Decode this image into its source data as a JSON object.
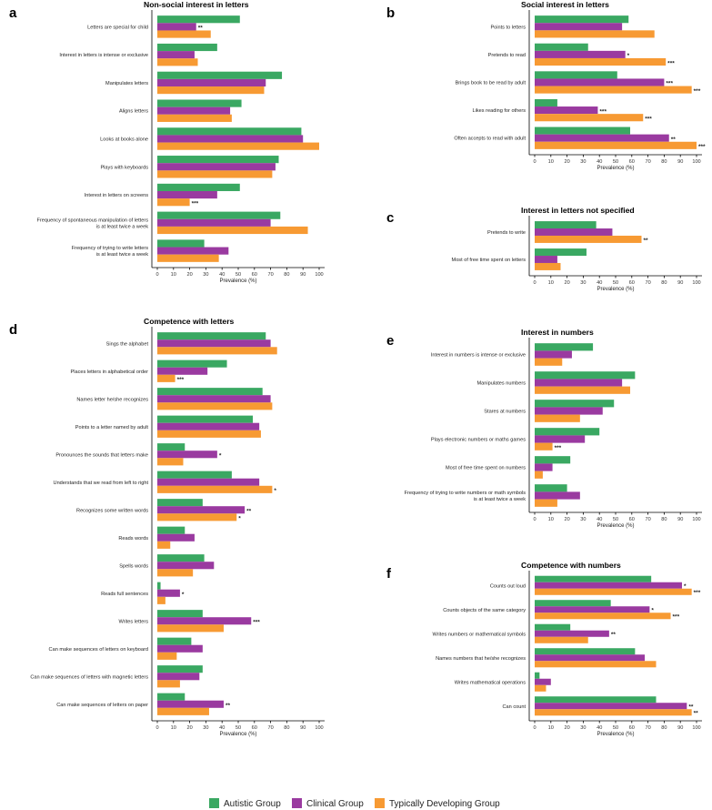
{
  "colors": {
    "autistic": "#3aa862",
    "clinical": "#9a3aa0",
    "typical": "#f79a33"
  },
  "legend": {
    "autistic": "Autistic Group",
    "clinical": "Clinical Group",
    "typical": "Typically Developing Group"
  },
  "chart_data": [
    {
      "id": "a",
      "letter": "a",
      "type": "bar",
      "orientation": "horizontal",
      "title": "Non-social interest in letters",
      "xlabel": "Prevalence (%)",
      "xlim": [
        0,
        100
      ],
      "xticks": [
        "0",
        "10",
        "20",
        "30",
        "40",
        "50",
        "60",
        "70",
        "80",
        "90",
        "100"
      ],
      "categories": [
        [
          "Letters are special for child"
        ],
        [
          "Interest in letters is intense or exclusive"
        ],
        [
          "Manipulates letters"
        ],
        [
          "Aligns letters"
        ],
        [
          "Looks at books alone"
        ],
        [
          "Plays with keyboards"
        ],
        [
          "Interest in letters on screens"
        ],
        [
          "Frequency of spontaneous manipulation of letters",
          "is at least twice a week"
        ],
        [
          "Frequency of trying to write letters",
          "is at least twice a week"
        ]
      ],
      "series": [
        {
          "name": "Autistic Group",
          "values": [
            51,
            37,
            77,
            52,
            89,
            75,
            51,
            76,
            29
          ]
        },
        {
          "name": "Clinical Group",
          "values": [
            24,
            23,
            67,
            45,
            90,
            73,
            37,
            70,
            44
          ]
        },
        {
          "name": "Typically Developing Group",
          "values": [
            33,
            25,
            66,
            46,
            100,
            71,
            20,
            93,
            38
          ]
        }
      ],
      "significance": [
        [
          "",
          "**",
          ""
        ],
        [
          "",
          "",
          ""
        ],
        [
          "",
          "",
          ""
        ],
        [
          "",
          "",
          ""
        ],
        [
          "",
          "",
          ""
        ],
        [
          "",
          "",
          ""
        ],
        [
          "",
          "",
          "***"
        ],
        [
          "",
          "",
          ""
        ],
        [
          "",
          "",
          ""
        ]
      ]
    },
    {
      "id": "b",
      "letter": "b",
      "type": "bar",
      "orientation": "horizontal",
      "title": "Social interest in letters",
      "xlabel": "Prevalence (%)",
      "xlim": [
        0,
        100
      ],
      "xticks": [
        "0",
        "10",
        "20",
        "30",
        "40",
        "50",
        "60",
        "70",
        "80",
        "90",
        "100"
      ],
      "categories": [
        [
          "Points to letters"
        ],
        [
          "Pretends to read"
        ],
        [
          "Brings book to be read by adult"
        ],
        [
          "Likes reading for others"
        ],
        [
          "Often accepts to read with adult"
        ]
      ],
      "series": [
        {
          "name": "Autistic Group",
          "values": [
            58,
            33,
            51,
            14,
            59
          ]
        },
        {
          "name": "Clinical Group",
          "values": [
            54,
            56,
            80,
            39,
            83
          ]
        },
        {
          "name": "Typically Developing Group",
          "values": [
            74,
            81,
            97,
            67,
            100
          ]
        }
      ],
      "significance": [
        [
          "",
          "",
          ""
        ],
        [
          "",
          "*",
          "***"
        ],
        [
          "",
          "***",
          "***"
        ],
        [
          "",
          "***",
          "***"
        ],
        [
          "",
          "**",
          "***"
        ]
      ]
    },
    {
      "id": "c",
      "letter": "c",
      "type": "bar",
      "orientation": "horizontal",
      "title": "Interest in letters not specified",
      "xlabel": "Prevalence (%)",
      "xlim": [
        0,
        100
      ],
      "xticks": [
        "0",
        "10",
        "20",
        "30",
        "40",
        "50",
        "60",
        "70",
        "80",
        "90",
        "100"
      ],
      "categories": [
        [
          "Pretends to write"
        ],
        [
          "Most of free time spent on letters"
        ]
      ],
      "series": [
        {
          "name": "Autistic Group",
          "values": [
            38,
            32
          ]
        },
        {
          "name": "Clinical Group",
          "values": [
            48,
            14
          ]
        },
        {
          "name": "Typically Developing Group",
          "values": [
            66,
            16
          ]
        }
      ],
      "significance": [
        [
          "",
          "",
          "**"
        ],
        [
          "",
          "",
          ""
        ]
      ]
    },
    {
      "id": "d",
      "letter": "d",
      "type": "bar",
      "orientation": "horizontal",
      "title": "Competence with letters",
      "xlabel": "Prevalence (%)",
      "xlim": [
        0,
        100
      ],
      "xticks": [
        "0",
        "10",
        "20",
        "30",
        "40",
        "50",
        "60",
        "70",
        "80",
        "90",
        "100"
      ],
      "categories": [
        [
          "Sings the alphabet"
        ],
        [
          "Places letters in alphabetical order"
        ],
        [
          "Names letter he/she recognizes"
        ],
        [
          "Points to a letter named by adult"
        ],
        [
          "Pronounces the sounds that letters make"
        ],
        [
          "Understands that we read from left to right"
        ],
        [
          "Recognizes some written words"
        ],
        [
          "Reads words"
        ],
        [
          "Spells words"
        ],
        [
          "Reads full sentences"
        ],
        [
          "Writes letters"
        ],
        [
          "Can make sequences of letters on keyboard"
        ],
        [
          "Can make sequences of letters with magnetic letters"
        ],
        [
          "Can make sequences of letters on paper"
        ]
      ],
      "series": [
        {
          "name": "Autistic Group",
          "values": [
            67,
            43,
            65,
            59,
            17,
            46,
            28,
            17,
            29,
            2,
            28,
            21,
            28,
            17
          ]
        },
        {
          "name": "Clinical Group",
          "values": [
            70,
            31,
            70,
            63,
            37,
            63,
            54,
            23,
            35,
            14,
            58,
            28,
            26,
            41
          ]
        },
        {
          "name": "Typically Developing Group",
          "values": [
            74,
            11,
            71,
            64,
            16,
            71,
            49,
            8,
            22,
            5,
            41,
            12,
            14,
            32
          ]
        }
      ],
      "significance": [
        [
          "",
          "",
          ""
        ],
        [
          "",
          "",
          "***"
        ],
        [
          "",
          "",
          ""
        ],
        [
          "",
          "",
          ""
        ],
        [
          "",
          "*",
          ""
        ],
        [
          "",
          "",
          "*"
        ],
        [
          "",
          "**",
          "*"
        ],
        [
          "",
          "",
          ""
        ],
        [
          "",
          "",
          ""
        ],
        [
          "",
          "*",
          ""
        ],
        [
          "",
          "***",
          ""
        ],
        [
          "",
          "",
          ""
        ],
        [
          "",
          "",
          ""
        ],
        [
          "",
          "**",
          ""
        ]
      ]
    },
    {
      "id": "e",
      "letter": "e",
      "type": "bar",
      "orientation": "horizontal",
      "title": "Interest in numbers",
      "xlabel": "Prevalence (%)",
      "xlim": [
        0,
        100
      ],
      "xticks": [
        "0",
        "10",
        "20",
        "30",
        "40",
        "50",
        "60",
        "70",
        "80",
        "90",
        "100"
      ],
      "categories": [
        [
          "Interest in numbers is intense or exclusive"
        ],
        [
          "Manipulates numbers"
        ],
        [
          "Stares at numbers"
        ],
        [
          "Plays electronic numbers or maths games"
        ],
        [
          "Most of free time spent on numbers"
        ],
        [
          "Frequency of trying to write numbers or math symbols",
          "is at least twice a week"
        ]
      ],
      "series": [
        {
          "name": "Autistic Group",
          "values": [
            36,
            62,
            49,
            40,
            22,
            20
          ]
        },
        {
          "name": "Clinical Group",
          "values": [
            23,
            54,
            42,
            31,
            11,
            28
          ]
        },
        {
          "name": "Typically Developing Group",
          "values": [
            17,
            59,
            28,
            11,
            5,
            14
          ]
        }
      ],
      "significance": [
        [
          "",
          "",
          ""
        ],
        [
          "",
          "",
          ""
        ],
        [
          "",
          "",
          ""
        ],
        [
          "",
          "",
          "***"
        ],
        [
          "",
          "",
          ""
        ],
        [
          "",
          "",
          ""
        ]
      ]
    },
    {
      "id": "f",
      "letter": "f",
      "type": "bar",
      "orientation": "horizontal",
      "title": "Competence with numbers",
      "xlabel": "Prevalence (%)",
      "xlim": [
        0,
        100
      ],
      "xticks": [
        "0",
        "10",
        "20",
        "30",
        "40",
        "50",
        "60",
        "70",
        "80",
        "90",
        "100"
      ],
      "categories": [
        [
          "Counts out loud"
        ],
        [
          "Counts objects of the same category"
        ],
        [
          "Writes numbers or mathematical symbols"
        ],
        [
          "Names numbers that he/she recognizes"
        ],
        [
          "Writes mathematical operations"
        ],
        [
          "Can count"
        ]
      ],
      "series": [
        {
          "name": "Autistic Group",
          "values": [
            72,
            47,
            22,
            62,
            3,
            75
          ]
        },
        {
          "name": "Clinical Group",
          "values": [
            91,
            71,
            46,
            68,
            10,
            94
          ]
        },
        {
          "name": "Typically Developing Group",
          "values": [
            97,
            84,
            33,
            75,
            7,
            97
          ]
        }
      ],
      "significance": [
        [
          "",
          "*",
          "***"
        ],
        [
          "",
          "*",
          "***"
        ],
        [
          "",
          "**",
          ""
        ],
        [
          "",
          "",
          ""
        ],
        [
          "",
          "",
          ""
        ],
        [
          "",
          "**",
          "**"
        ]
      ]
    }
  ]
}
